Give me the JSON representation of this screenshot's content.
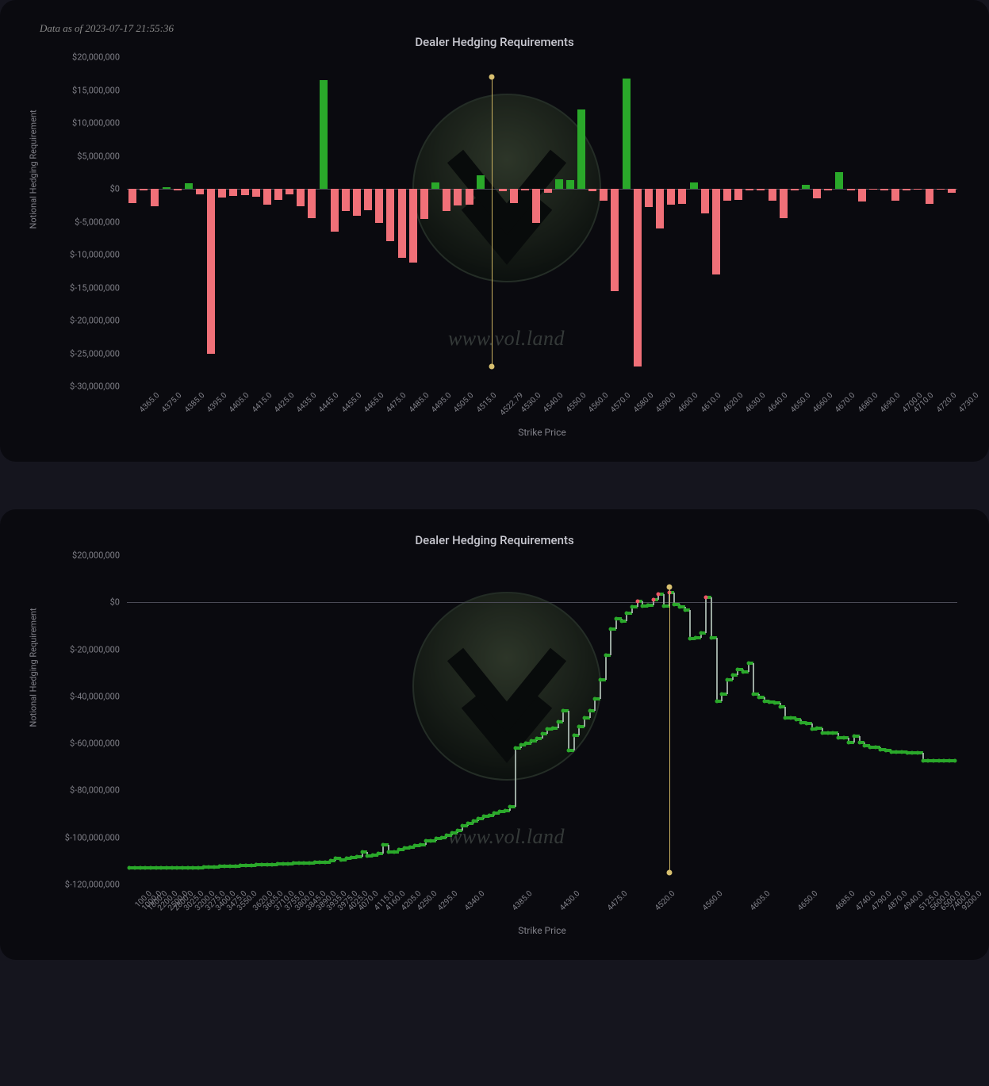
{
  "timestamp": "Data as of 2023-07-17 21:55:36",
  "watermark_text": "www.vol.land",
  "chart1": {
    "type": "bar",
    "title": "Dealer Hedging Requirements",
    "y_label": "Notional Hedging Requirement",
    "x_label": "Strike Price",
    "background_color": "#0a0a0f",
    "pos_color": "#2aa82a",
    "neg_color": "#f07078",
    "grid_color": "#4a4a55",
    "tick_fontsize": 11,
    "y_min": -30000000,
    "y_max": 20000000,
    "y_tick_step": 5000000,
    "y_ticks": [
      {
        "v": 20000000,
        "label": "$20,000,000"
      },
      {
        "v": 15000000,
        "label": "$15,000,000"
      },
      {
        "v": 10000000,
        "label": "$10,000,000"
      },
      {
        "v": 5000000,
        "label": "$5,000,000"
      },
      {
        "v": 0,
        "label": "$0"
      },
      {
        "v": -5000000,
        "label": "$-5,000,000"
      },
      {
        "v": -10000000,
        "label": "$-10,000,000"
      },
      {
        "v": -15000000,
        "label": "$-15,000,000"
      },
      {
        "v": -20000000,
        "label": "$-20,000,000"
      },
      {
        "v": -25000000,
        "label": "$-25,000,000"
      },
      {
        "v": -30000000,
        "label": "$-30,000,000"
      }
    ],
    "spot": 4522.79,
    "bars": [
      {
        "x": "4365.0",
        "v": -2200000
      },
      {
        "x": "4370.0",
        "v": -300000
      },
      {
        "x": "4375.0",
        "v": -2600000
      },
      {
        "x": "4380.0",
        "v": 200000
      },
      {
        "x": "4385.0",
        "v": -300000
      },
      {
        "x": "4390.0",
        "v": 800000
      },
      {
        "x": "4395.0",
        "v": -900000
      },
      {
        "x": "4400.0",
        "v": -25000000
      },
      {
        "x": "4405.0",
        "v": -1300000
      },
      {
        "x": "4410.0",
        "v": -1100000
      },
      {
        "x": "4415.0",
        "v": -1000000
      },
      {
        "x": "4420.0",
        "v": -1200000
      },
      {
        "x": "4425.0",
        "v": -2400000
      },
      {
        "x": "4430.0",
        "v": -1700000
      },
      {
        "x": "4435.0",
        "v": -800000
      },
      {
        "x": "4440.0",
        "v": -2600000
      },
      {
        "x": "4445.0",
        "v": -4500000
      },
      {
        "x": "4450.0",
        "v": 16500000
      },
      {
        "x": "4455.0",
        "v": -6500000
      },
      {
        "x": "4460.0",
        "v": -3400000
      },
      {
        "x": "4465.0",
        "v": -4100000
      },
      {
        "x": "4470.0",
        "v": -3300000
      },
      {
        "x": "4475.0",
        "v": -5200000
      },
      {
        "x": "4480.0",
        "v": -8000000
      },
      {
        "x": "4485.0",
        "v": -10500000
      },
      {
        "x": "4490.0",
        "v": -11200000
      },
      {
        "x": "4495.0",
        "v": -4600000
      },
      {
        "x": "4500.0",
        "v": 1000000
      },
      {
        "x": "4505.0",
        "v": -3400000
      },
      {
        "x": "4510.0",
        "v": -2500000
      },
      {
        "x": "4515.0",
        "v": -2400000
      },
      {
        "x": "4520.0",
        "v": 2000000
      },
      {
        "x": "4522.79",
        "v": 0
      },
      {
        "x": "4525.0",
        "v": -400000
      },
      {
        "x": "4530.0",
        "v": -2200000
      },
      {
        "x": "4535.0",
        "v": -200000
      },
      {
        "x": "4540.0",
        "v": -5200000
      },
      {
        "x": "4545.0",
        "v": -600000
      },
      {
        "x": "4550.0",
        "v": 1500000
      },
      {
        "x": "4555.0",
        "v": 1300000
      },
      {
        "x": "4560.0",
        "v": 12000000
      },
      {
        "x": "4565.0",
        "v": -400000
      },
      {
        "x": "4570.0",
        "v": -1800000
      },
      {
        "x": "4575.0",
        "v": -15500000
      },
      {
        "x": "4580.0",
        "v": 16800000
      },
      {
        "x": "4585.0",
        "v": -27000000
      },
      {
        "x": "4590.0",
        "v": -2800000
      },
      {
        "x": "4595.0",
        "v": -6000000
      },
      {
        "x": "4600.0",
        "v": -2400000
      },
      {
        "x": "4605.0",
        "v": -2300000
      },
      {
        "x": "4610.0",
        "v": 1000000
      },
      {
        "x": "4615.0",
        "v": -3700000
      },
      {
        "x": "4620.0",
        "v": -13000000
      },
      {
        "x": "4625.0",
        "v": -1800000
      },
      {
        "x": "4630.0",
        "v": -1700000
      },
      {
        "x": "4635.0",
        "v": -300000
      },
      {
        "x": "4640.0",
        "v": -200000
      },
      {
        "x": "4645.0",
        "v": -1800000
      },
      {
        "x": "4650.0",
        "v": -4500000
      },
      {
        "x": "4655.0",
        "v": -200000
      },
      {
        "x": "4660.0",
        "v": 600000
      },
      {
        "x": "4665.0",
        "v": -1500000
      },
      {
        "x": "4670.0",
        "v": -200000
      },
      {
        "x": "4675.0",
        "v": 2500000
      },
      {
        "x": "4680.0",
        "v": -300000
      },
      {
        "x": "4685.0",
        "v": -1900000
      },
      {
        "x": "4690.0",
        "v": -100000
      },
      {
        "x": "4695.0",
        "v": -200000
      },
      {
        "x": "4700.0",
        "v": -1800000
      },
      {
        "x": "4710.0",
        "v": -200000
      },
      {
        "x": "4715.0",
        "v": -100000
      },
      {
        "x": "4720.0",
        "v": -2300000
      },
      {
        "x": "4725.0",
        "v": -100000
      },
      {
        "x": "4730.0",
        "v": -600000
      }
    ],
    "x_tick_labels": [
      "4365.0",
      "4375.0",
      "4385.0",
      "4395.0",
      "4405.0",
      "4415.0",
      "4425.0",
      "4435.0",
      "4445.0",
      "4455.0",
      "4465.0",
      "4475.0",
      "4485.0",
      "4495.0",
      "4505.0",
      "4515.0",
      "4522.79",
      "4530.0",
      "4540.0",
      "4550.0",
      "4560.0",
      "4570.0",
      "4580.0",
      "4590.0",
      "4600.0",
      "4610.0",
      "4620.0",
      "4630.0",
      "4640.0",
      "4650.0",
      "4660.0",
      "4670.0",
      "4680.0",
      "4690.0",
      "4700.0",
      "4710.0",
      "4720.0",
      "4730.0"
    ]
  },
  "chart2": {
    "type": "line",
    "title": "Dealer Hedging Requirements",
    "y_label": "Notional Hedging Requirement",
    "x_label": "Strike Price",
    "background_color": "#0a0a0f",
    "line_color": "#2aa82a",
    "riser_color": "#9aa8a0",
    "marker_pos_color": "#2aa82a",
    "marker_neg_color": "#ee5566",
    "grid_color": "#4a4a55",
    "y_min": -120000000,
    "y_max": 20000000,
    "y_tick_step": 20000000,
    "y_ticks": [
      {
        "v": 20000000,
        "label": "$20,000,000"
      },
      {
        "v": 0,
        "label": "$0"
      },
      {
        "v": -20000000,
        "label": "$-20,000,000"
      },
      {
        "v": -40000000,
        "label": "$-40,000,000"
      },
      {
        "v": -60000000,
        "label": "$-60,000,000"
      },
      {
        "v": -80000000,
        "label": "$-80,000,000"
      },
      {
        "v": -100000000,
        "label": "$-100,000,000"
      },
      {
        "v": -120000000,
        "label": "$-120,000,000"
      }
    ],
    "spot_index": 102,
    "points": [
      {
        "x": "100.0",
        "v": -113000000
      },
      {
        "x": "1000.0",
        "v": -113000000
      },
      {
        "x": "1800.0",
        "v": -113000000
      },
      {
        "x": "2000.0",
        "v": -113000000
      },
      {
        "x": "2200.0",
        "v": -113000000
      },
      {
        "x": "2275.0",
        "v": -113000000
      },
      {
        "x": "2500.0",
        "v": -113000000
      },
      {
        "x": "2800.0",
        "v": -113000000
      },
      {
        "x": "3000.0",
        "v": -113000000
      },
      {
        "x": "3025.0",
        "v": -113000000
      },
      {
        "x": "3100.0",
        "v": -113000000
      },
      {
        "x": "3200.0",
        "v": -113000000
      },
      {
        "x": "3250.0",
        "v": -112800000
      },
      {
        "x": "3275.0",
        "v": -112800000
      },
      {
        "x": "3350.0",
        "v": -112700000
      },
      {
        "x": "3400.0",
        "v": -112600000
      },
      {
        "x": "3425.0",
        "v": -112500000
      },
      {
        "x": "3475.0",
        "v": -112400000
      },
      {
        "x": "3500.0",
        "v": -112300000
      },
      {
        "x": "3550.0",
        "v": -112200000
      },
      {
        "x": "3575.0",
        "v": -112100000
      },
      {
        "x": "3600.0",
        "v": -112000000
      },
      {
        "x": "3620.0",
        "v": -111900000
      },
      {
        "x": "3650.0",
        "v": -111800000
      },
      {
        "x": "3665.0",
        "v": -111700000
      },
      {
        "x": "3700.0",
        "v": -111600000
      },
      {
        "x": "3710.0",
        "v": -111500000
      },
      {
        "x": "3740.0",
        "v": -111400000
      },
      {
        "x": "3755.0",
        "v": -111300000
      },
      {
        "x": "3780.0",
        "v": -111200000
      },
      {
        "x": "3800.0",
        "v": -111100000
      },
      {
        "x": "3830.0",
        "v": -111000000
      },
      {
        "x": "3845.0",
        "v": -111000000
      },
      {
        "x": "3870.0",
        "v": -110900000
      },
      {
        "x": "3890.0",
        "v": -110800000
      },
      {
        "x": "3910.0",
        "v": -110700000
      },
      {
        "x": "3935.0",
        "v": -110600000
      },
      {
        "x": "3955.0",
        "v": -110500000
      },
      {
        "x": "3975.0",
        "v": -110000000
      },
      {
        "x": "4000.0",
        "v": -109000000
      },
      {
        "x": "4025.0",
        "v": -109500000
      },
      {
        "x": "4050.0",
        "v": -109000000
      },
      {
        "x": "4070.0",
        "v": -108500000
      },
      {
        "x": "4090.0",
        "v": -108200000
      },
      {
        "x": "4100.0",
        "v": -106000000
      },
      {
        "x": "4115.0",
        "v": -108000000
      },
      {
        "x": "4140.0",
        "v": -107500000
      },
      {
        "x": "4160.0",
        "v": -107000000
      },
      {
        "x": "4180.0",
        "v": -103000000
      },
      {
        "x": "4200.0",
        "v": -106000000
      },
      {
        "x": "4205.0",
        "v": -106000000
      },
      {
        "x": "4220.0",
        "v": -105000000
      },
      {
        "x": "4230.0",
        "v": -104500000
      },
      {
        "x": "4250.0",
        "v": -104000000
      },
      {
        "x": "4260.0",
        "v": -103500000
      },
      {
        "x": "4275.0",
        "v": -103000000
      },
      {
        "x": "4285.0",
        "v": -101500000
      },
      {
        "x": "4295.0",
        "v": -101500000
      },
      {
        "x": "4305.0",
        "v": -100500000
      },
      {
        "x": "4315.0",
        "v": -100000000
      },
      {
        "x": "4325.0",
        "v": -99000000
      },
      {
        "x": "4335.0",
        "v": -98000000
      },
      {
        "x": "4340.0",
        "v": -97000000
      },
      {
        "x": "4345.0",
        "v": -95000000
      },
      {
        "x": "4350.0",
        "v": -94000000
      },
      {
        "x": "4355.0",
        "v": -93000000
      },
      {
        "x": "4360.0",
        "v": -92000000
      },
      {
        "x": "4365.0",
        "v": -91000000
      },
      {
        "x": "4370.0",
        "v": -90500000
      },
      {
        "x": "4375.0",
        "v": -89500000
      },
      {
        "x": "4380.0",
        "v": -89000000
      },
      {
        "x": "4385.0",
        "v": -88500000
      },
      {
        "x": "4390.0",
        "v": -87000000
      },
      {
        "x": "4395.0",
        "v": -62000000
      },
      {
        "x": "4400.0",
        "v": -60500000
      },
      {
        "x": "4405.0",
        "v": -60000000
      },
      {
        "x": "4410.0",
        "v": -59000000
      },
      {
        "x": "4415.0",
        "v": -58000000
      },
      {
        "x": "4420.0",
        "v": -56000000
      },
      {
        "x": "4425.0",
        "v": -54000000
      },
      {
        "x": "4430.0",
        "v": -53500000
      },
      {
        "x": "4435.0",
        "v": -51000000
      },
      {
        "x": "4440.0",
        "v": -46000000
      },
      {
        "x": "4445.0",
        "v": -63000000
      },
      {
        "x": "4450.0",
        "v": -56500000
      },
      {
        "x": "4455.0",
        "v": -53000000
      },
      {
        "x": "4460.0",
        "v": -49000000
      },
      {
        "x": "4465.0",
        "v": -46000000
      },
      {
        "x": "4470.0",
        "v": -41000000
      },
      {
        "x": "4475.0",
        "v": -33000000
      },
      {
        "x": "4480.0",
        "v": -22500000
      },
      {
        "x": "4485.0",
        "v": -11500000
      },
      {
        "x": "4490.0",
        "v": -7000000
      },
      {
        "x": "4495.0",
        "v": -8000000
      },
      {
        "x": "4500.0",
        "v": -4500000
      },
      {
        "x": "4505.0",
        "v": -2000000
      },
      {
        "x": "4510.0",
        "v": 500000
      },
      {
        "x": "4515.0",
        "v": -1500000
      },
      {
        "x": "4520.0",
        "v": -1200000
      },
      {
        "x": "4522.79",
        "v": 1000000
      },
      {
        "x": "4525.0",
        "v": 3500000
      },
      {
        "x": "4530.0",
        "v": -1500000
      },
      {
        "x": "4535.0",
        "v": 4000000
      },
      {
        "x": "4540.0",
        "v": -800000
      },
      {
        "x": "4545.0",
        "v": -2000000
      },
      {
        "x": "4550.0",
        "v": -3300000
      },
      {
        "x": "4555.0",
        "v": -15500000
      },
      {
        "x": "4560.0",
        "v": -15000000
      },
      {
        "x": "4565.0",
        "v": -13000000
      },
      {
        "x": "4570.0",
        "v": 2000000
      },
      {
        "x": "4575.0",
        "v": -15000000
      },
      {
        "x": "4580.0",
        "v": -42000000
      },
      {
        "x": "4585.0",
        "v": -39000000
      },
      {
        "x": "4590.0",
        "v": -33000000
      },
      {
        "x": "4595.0",
        "v": -31000000
      },
      {
        "x": "4600.0",
        "v": -28500000
      },
      {
        "x": "4605.0",
        "v": -29500000
      },
      {
        "x": "4610.0",
        "v": -26000000
      },
      {
        "x": "4615.0",
        "v": -39000000
      },
      {
        "x": "4620.0",
        "v": -40500000
      },
      {
        "x": "4625.0",
        "v": -42000000
      },
      {
        "x": "4630.0",
        "v": -42500000
      },
      {
        "x": "4635.0",
        "v": -42700000
      },
      {
        "x": "4640.0",
        "v": -44500000
      },
      {
        "x": "4645.0",
        "v": -49000000
      },
      {
        "x": "4650.0",
        "v": -49200000
      },
      {
        "x": "4655.0",
        "v": -49800000
      },
      {
        "x": "4660.0",
        "v": -51200000
      },
      {
        "x": "4665.0",
        "v": -51400000
      },
      {
        "x": "4670.0",
        "v": -53800000
      },
      {
        "x": "4675.0",
        "v": -53500000
      },
      {
        "x": "4680.0",
        "v": -55500000
      },
      {
        "x": "4685.0",
        "v": -55500000
      },
      {
        "x": "4690.0",
        "v": -55700000
      },
      {
        "x": "4700.0",
        "v": -57500000
      },
      {
        "x": "4720.0",
        "v": -57500000
      },
      {
        "x": "4740.0",
        "v": -59500000
      },
      {
        "x": "4750.0",
        "v": -57000000
      },
      {
        "x": "4775.0",
        "v": -59500000
      },
      {
        "x": "4790.0",
        "v": -61000000
      },
      {
        "x": "4825.0",
        "v": -61500000
      },
      {
        "x": "4850.0",
        "v": -61500000
      },
      {
        "x": "4870.0",
        "v": -62500000
      },
      {
        "x": "4900.0",
        "v": -63000000
      },
      {
        "x": "4925.0",
        "v": -63500000
      },
      {
        "x": "4940.0",
        "v": -63500000
      },
      {
        "x": "5000.0",
        "v": -63500000
      },
      {
        "x": "5100.0",
        "v": -64000000
      },
      {
        "x": "5125.0",
        "v": -64000000
      },
      {
        "x": "5300.0",
        "v": -64000000
      },
      {
        "x": "5600.0",
        "v": -67500000
      },
      {
        "x": "6000.0",
        "v": -67500000
      },
      {
        "x": "6500.0",
        "v": -67500000
      },
      {
        "x": "7000.0",
        "v": -67500000
      },
      {
        "x": "7400.0",
        "v": -67500000
      },
      {
        "x": "8000.0",
        "v": -67500000
      },
      {
        "x": "9200.0",
        "v": -67500000
      }
    ],
    "x_tick_labels": [
      "100.0",
      "1000.0",
      "1800.0",
      "2200.0",
      "2500.0",
      "2800.0",
      "3025.0",
      "3200.0",
      "3275.0",
      "3400.0",
      "3475.0",
      "3550.0",
      "3620.0",
      "3665.0",
      "3710.0",
      "3755.0",
      "3800.0",
      "3845.0",
      "3890.0",
      "3935.0",
      "3975.0",
      "4025.0",
      "4070.0",
      "4115.0",
      "4160.0",
      "4205.0",
      "4250.0",
      "4295.0",
      "4340.0",
      "4385.0",
      "4430.0",
      "4475.0",
      "4520.0",
      "4560.0",
      "4605.0",
      "4650.0",
      "4685.0",
      "4740.0",
      "4790.0",
      "4870.0",
      "4940.0",
      "5125.0",
      "5600.0",
      "6500.0",
      "7400.0",
      "9200.0"
    ]
  }
}
